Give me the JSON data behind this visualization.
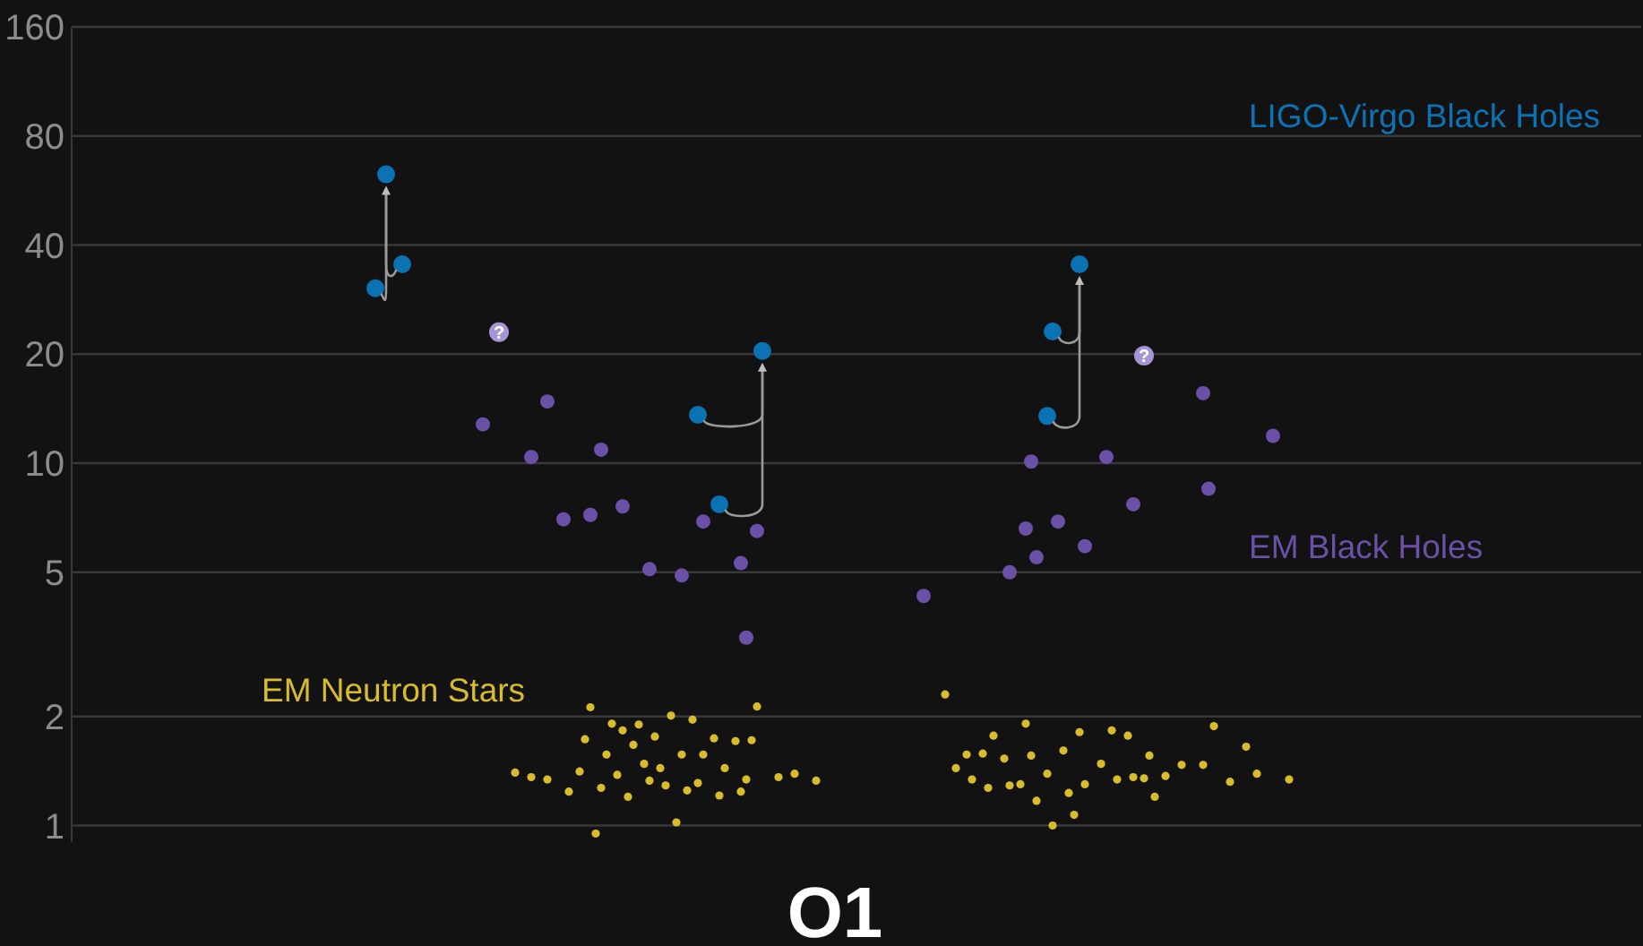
{
  "chart_data": {
    "type": "scatter",
    "title": "O1",
    "categories": [
      null,
      null,
      null,
      null,
      null,
      null,
      null,
      null,
      null,
      null,
      null,
      null,
      null,
      null,
      null,
      null,
      null,
      null,
      null,
      null,
      null,
      null,
      null,
      null,
      null,
      null,
      null,
      null,
      null,
      null,
      null,
      null,
      null,
      null,
      null,
      null,
      null,
      null,
      null,
      null,
      null,
      null,
      null,
      null,
      null,
      null,
      null,
      null,
      null,
      null,
      null,
      null,
      null,
      null,
      null,
      null,
      null,
      null,
      null,
      null,
      null,
      null,
      null,
      null,
      null,
      null,
      null,
      null,
      null,
      null,
      null,
      null,
      null,
      null,
      null,
      null,
      null,
      null,
      null,
      null,
      null,
      null,
      null,
      null,
      null,
      null,
      null,
      null,
      null,
      null,
      null,
      null,
      null,
      null,
      null,
      null,
      null,
      null,
      null,
      null,
      null,
      null,
      null,
      null,
      null,
      null,
      null,
      null,
      null,
      null,
      null,
      null,
      null,
      null,
      null,
      null,
      null,
      null,
      null,
      null,
      null,
      null,
      null,
      null,
      null,
      null,
      null,
      null,
      null,
      null,
      null,
      null,
      null,
      null,
      null,
      null,
      null,
      null,
      null,
      null,
      null,
      null,
      null,
      null,
      null,
      null,
      null,
      null,
      null,
      null,
      null,
      null,
      null,
      null,
      null,
      null,
      null,
      null,
      null,
      null,
      null,
      null,
      null,
      null,
      null,
      null,
      null,
      null,
      null,
      null,
      null,
      null,
      null,
      null,
      null,
      null,
      null,
      null,
      null,
      null,
      null,
      null,
      null,
      null,
      null,
      null,
      null,
      null,
      null,
      null,
      null,
      null,
      null,
      null,
      null,
      null,
      null,
      null,
      null,
      null,
      null,
      null,
      null,
      null,
      null,
      null,
      null,
      null,
      null,
      null,
      null,
      null,
      null,
      null,
      null,
      null,
      null,
      null,
      null,
      null,
      null,
      null,
      null,
      null,
      null,
      null,
      null,
      null,
      null,
      null,
      null,
      null,
      null,
      null,
      null,
      null,
      null,
      null,
      null,
      null,
      null,
      null,
      null,
      null,
      null,
      null,
      null,
      null,
      null,
      null,
      null,
      null,
      null,
      null,
      null,
      null,
      null,
      null,
      null,
      null,
      null,
      null,
      null,
      null,
      null,
      null,
      null,
      null,
      null,
      null,
      null,
      null,
      null,
      null,
      null,
      null,
      null,
      null,
      null,
      null,
      null,
      null,
      null,
      null,
      null,
      null,
      null,
      null,
      null,
      null,
      null,
      null
    ],
    "ylim": [
      0.9,
      160
    ],
    "yticks": [
      1,
      2,
      5,
      10,
      20,
      40,
      80,
      160
    ],
    "log": "y",
    "grid": "y",
    "tick_labels": "y",
    "marker": "circle",
    "series": [
      {
        "name": "LIGO-Virgo Black Holes",
        "color": "#0b72b4",
        "values": [
          null,
          null,
          null,
          null,
          null,
          null,
          null,
          null,
          null,
          null,
          null,
          null,
          null,
          null,
          null,
          null,
          null,
          null,
          null,
          null,
          null,
          null,
          null,
          null,
          null,
          null,
          null,
          null,
          null,
          null,
          null,
          null,
          null,
          null,
          null,
          null,
          null,
          null,
          null,
          null,
          null,
          null,
          null,
          null,
          null,
          null,
          null,
          null,
          null,
          null,
          null,
          null,
          null,
          null,
          null,
          null,
          30.4,
          null,
          62.7,
          null,
          null,
          35.4,
          null,
          null,
          null,
          null,
          null,
          null,
          null,
          null,
          null,
          null,
          null,
          null,
          null,
          null,
          null,
          null,
          null,
          null,
          null,
          null,
          null,
          null,
          null,
          null,
          null,
          null,
          null,
          null,
          null,
          null,
          null,
          null,
          null,
          null,
          null,
          null,
          null,
          null,
          null,
          null,
          null,
          null,
          null,
          null,
          null,
          null,
          null,
          null,
          null,
          null,
          null,
          null,
          null,
          null,
          13.6,
          null,
          null,
          null,
          7.7,
          null,
          null,
          null,
          null,
          null,
          null,
          null,
          20.4,
          null,
          null,
          null,
          null,
          null,
          null,
          null,
          null,
          null,
          null,
          null,
          null,
          null,
          null,
          null,
          null,
          null,
          null,
          null,
          null,
          null,
          null,
          null,
          null,
          null,
          null,
          null,
          null,
          null,
          null,
          null,
          null,
          null,
          null,
          null,
          null,
          null,
          null,
          null,
          null,
          null,
          null,
          null,
          null,
          null,
          null,
          null,
          null,
          null,
          null,
          null,
          null,
          13.5,
          23.1,
          null,
          null,
          null,
          null,
          35.4,
          null,
          null,
          null,
          null,
          null,
          null,
          null,
          null,
          null,
          null,
          null,
          null,
          null,
          null,
          null,
          null,
          null,
          null,
          null,
          null,
          null,
          null,
          null,
          null,
          null,
          null,
          null,
          null,
          null,
          null,
          null,
          null,
          null,
          null,
          null,
          null,
          null,
          null,
          null,
          null,
          null,
          null,
          null,
          null,
          null,
          null,
          null,
          null,
          null,
          null,
          null,
          null,
          null,
          null,
          null,
          null,
          null,
          null,
          null,
          null,
          null,
          null,
          null,
          null,
          null,
          null,
          null,
          null,
          null,
          null,
          null,
          null,
          null,
          null,
          null,
          null,
          null,
          null,
          null,
          null,
          null,
          null,
          null,
          null,
          null,
          null,
          null,
          null,
          null,
          null,
          null,
          null,
          null,
          null,
          null,
          null,
          null,
          null,
          null,
          null,
          null,
          null,
          null,
          null
        ]
      },
      {
        "name": "EM Black Holes",
        "color": "#6a50a6",
        "values": [
          null,
          null,
          null,
          null,
          null,
          null,
          null,
          null,
          null,
          null,
          null,
          null,
          null,
          null,
          null,
          null,
          null,
          null,
          null,
          null,
          null,
          null,
          null,
          null,
          null,
          null,
          null,
          null,
          null,
          null,
          null,
          null,
          null,
          null,
          null,
          null,
          null,
          null,
          null,
          null,
          null,
          null,
          null,
          null,
          null,
          null,
          null,
          null,
          null,
          null,
          null,
          null,
          null,
          null,
          null,
          null,
          null,
          null,
          null,
          null,
          null,
          null,
          null,
          null,
          null,
          null,
          null,
          null,
          null,
          null,
          null,
          null,
          null,
          null,
          null,
          null,
          12.8,
          null,
          null,
          null,
          null,
          null,
          null,
          null,
          null,
          10.4,
          null,
          null,
          14.8,
          null,
          null,
          7.0,
          null,
          null,
          null,
          null,
          7.2,
          null,
          10.9,
          null,
          null,
          null,
          7.6,
          null,
          null,
          null,
          null,
          5.1,
          null,
          null,
          null,
          null,
          null,
          4.9,
          null,
          null,
          null,
          6.9,
          null,
          null,
          null,
          null,
          null,
          null,
          5.3,
          3.3,
          null,
          6.5,
          null,
          null,
          null,
          null,
          null,
          null,
          null,
          null,
          null,
          null,
          null,
          null,
          null,
          null,
          null,
          null,
          null,
          null,
          null,
          null,
          null,
          null,
          null,
          null,
          null,
          null,
          null,
          null,
          null,
          null,
          4.3,
          null,
          null,
          null,
          null,
          null,
          null,
          null,
          null,
          null,
          null,
          null,
          null,
          null,
          null,
          null,
          5.0,
          null,
          null,
          6.6,
          10.1,
          5.5,
          null,
          null,
          null,
          6.9,
          null,
          null,
          null,
          null,
          5.9,
          null,
          null,
          null,
          10.4,
          null,
          null,
          null,
          null,
          7.7,
          null,
          null,
          null,
          null,
          null,
          null,
          null,
          null,
          null,
          null,
          null,
          null,
          15.6,
          8.5,
          null,
          null,
          null,
          null,
          null,
          null,
          null,
          null,
          null,
          null,
          null,
          11.9,
          null,
          null,
          null,
          null,
          null,
          null,
          null,
          null,
          null,
          null,
          null,
          null,
          null,
          null,
          null,
          null,
          null,
          null,
          null,
          null,
          null,
          null,
          null,
          null,
          null,
          null,
          null,
          null,
          null,
          null,
          null,
          null,
          null,
          null,
          null,
          null,
          null,
          null,
          null,
          null,
          null,
          null,
          null,
          null,
          null,
          null,
          null,
          null,
          null,
          null,
          null,
          null,
          null,
          null,
          null,
          null,
          null,
          null,
          null,
          null,
          null,
          null,
          null,
          null,
          null,
          null,
          null,
          null
        ]
      },
      {
        "name": "EM Neutron Stars",
        "color": "#d8bc2c",
        "values": [
          null,
          null,
          null,
          null,
          null,
          null,
          null,
          null,
          null,
          null,
          null,
          null,
          null,
          null,
          null,
          null,
          null,
          null,
          null,
          null,
          null,
          null,
          null,
          null,
          null,
          null,
          null,
          null,
          null,
          null,
          null,
          null,
          null,
          null,
          null,
          null,
          null,
          null,
          null,
          null,
          null,
          null,
          null,
          null,
          null,
          null,
          null,
          null,
          null,
          null,
          null,
          null,
          null,
          null,
          null,
          null,
          null,
          null,
          null,
          null,
          null,
          null,
          null,
          null,
          null,
          null,
          null,
          null,
          null,
          null,
          null,
          null,
          null,
          null,
          null,
          null,
          null,
          null,
          null,
          null,
          null,
          null,
          1.4,
          null,
          null,
          1.36,
          null,
          null,
          1.34,
          null,
          null,
          null,
          1.24,
          null,
          1.41,
          1.73,
          2.12,
          0.95,
          1.27,
          1.57,
          1.91,
          1.38,
          1.83,
          1.2,
          1.67,
          1.9,
          1.48,
          1.33,
          1.76,
          1.44,
          1.29,
          2.01,
          1.02,
          1.57,
          1.25,
          1.96,
          1.31,
          1.57,
          null,
          1.74,
          1.21,
          1.44,
          null,
          1.71,
          1.24,
          1.34,
          1.72,
          2.13,
          null,
          null,
          null,
          1.36,
          null,
          null,
          1.39,
          null,
          null,
          null,
          1.33,
          null,
          null,
          null,
          null,
          null,
          null,
          null,
          null,
          null,
          null,
          null,
          null,
          null,
          null,
          null,
          null,
          null,
          null,
          null,
          null,
          null,
          null,
          null,
          2.3,
          null,
          1.44,
          null,
          1.57,
          1.34,
          null,
          1.58,
          1.27,
          1.77,
          null,
          1.53,
          1.29,
          null,
          1.3,
          1.91,
          1.56,
          1.17,
          null,
          1.39,
          1.0,
          null,
          1.61,
          1.23,
          1.07,
          1.81,
          1.3,
          null,
          null,
          1.48,
          null,
          1.83,
          1.34,
          null,
          1.77,
          1.36,
          null,
          1.35,
          1.56,
          1.2,
          null,
          1.37,
          null,
          null,
          1.47,
          null,
          null,
          null,
          1.47,
          null,
          1.88,
          null,
          null,
          1.32,
          null,
          null,
          1.65,
          null,
          1.39,
          null,
          null,
          null,
          null,
          null,
          1.34,
          null,
          null,
          null,
          null,
          null,
          null,
          null,
          null,
          null,
          null,
          null,
          null,
          null,
          null,
          null,
          null,
          null,
          null,
          null,
          null,
          null,
          null,
          null,
          null,
          null,
          null,
          null,
          null,
          null,
          null,
          null,
          null,
          null,
          null,
          null,
          null,
          null,
          null,
          null,
          null,
          null,
          null,
          null,
          null,
          null,
          null,
          null,
          null,
          null,
          null,
          null,
          null,
          null,
          null,
          null,
          null,
          null,
          null,
          null,
          null,
          null,
          null,
          null,
          null,
          null
        ]
      },
      {
        "color": "#a794d6",
        "values": [
          null,
          null,
          null,
          null,
          null,
          null,
          null,
          null,
          null,
          null,
          null,
          null,
          null,
          null,
          null,
          null,
          null,
          null,
          null,
          null,
          null,
          null,
          null,
          null,
          null,
          null,
          null,
          null,
          null,
          null,
          null,
          null,
          null,
          null,
          null,
          null,
          null,
          null,
          null,
          null,
          null,
          null,
          null,
          null,
          null,
          null,
          null,
          null,
          null,
          null,
          null,
          null,
          null,
          null,
          null,
          null,
          null,
          null,
          null,
          null,
          null,
          null,
          null,
          null,
          null,
          null,
          null,
          null,
          null,
          null,
          null,
          null,
          null,
          null,
          null,
          null,
          null,
          null,
          null,
          23,
          null,
          null,
          null,
          null,
          null,
          null,
          null,
          null,
          null,
          null,
          null,
          null,
          null,
          null,
          null,
          null,
          null,
          null,
          null,
          null,
          null,
          null,
          null,
          null,
          null,
          null,
          null,
          null,
          null,
          null,
          null,
          null,
          null,
          null,
          null,
          null,
          null,
          null,
          null,
          null,
          null,
          null,
          null,
          null,
          null,
          null,
          null,
          null,
          null,
          null,
          null,
          null,
          null,
          null,
          null,
          null,
          null,
          null,
          null,
          null,
          null,
          null,
          null,
          null,
          null,
          null,
          null,
          null,
          null,
          null,
          null,
          null,
          null,
          null,
          null,
          null,
          null,
          null,
          null,
          null,
          null,
          null,
          null,
          null,
          null,
          null,
          null,
          null,
          null,
          null,
          null,
          null,
          null,
          null,
          null,
          null,
          null,
          null,
          null,
          null,
          null,
          null,
          null,
          null,
          null,
          null,
          null,
          null,
          null,
          null,
          null,
          null,
          null,
          null,
          null,
          null,
          null,
          null,
          null,
          19.8,
          null,
          null,
          null,
          null,
          null,
          null,
          null,
          null,
          null,
          null,
          null,
          null,
          null,
          null,
          null,
          null,
          null,
          null,
          null,
          null,
          null,
          null,
          null,
          null,
          null,
          null,
          null,
          null,
          null,
          null,
          null,
          null,
          null,
          null,
          null,
          null,
          null,
          null,
          null,
          null,
          null,
          null,
          null,
          null,
          null,
          null,
          null,
          null,
          null,
          null,
          null,
          null,
          null,
          null,
          null,
          null,
          null,
          null,
          null,
          null,
          null,
          null,
          null,
          null,
          null,
          null,
          null,
          null,
          null,
          null,
          null,
          null,
          null,
          null,
          null,
          null,
          null,
          null,
          null,
          null,
          null,
          null,
          null,
          null,
          null,
          null,
          null,
          null,
          null,
          null,
          null,
          null
        ],
        "value_labels": [
          null,
          null,
          null,
          null,
          null,
          null,
          null,
          null,
          null,
          null,
          null,
          null,
          null,
          null,
          null,
          null,
          null,
          null,
          null,
          null,
          null,
          null,
          null,
          null,
          null,
          null,
          null,
          null,
          null,
          null,
          null,
          null,
          null,
          null,
          null,
          null,
          null,
          null,
          null,
          null,
          null,
          null,
          null,
          null,
          null,
          null,
          null,
          null,
          null,
          null,
          null,
          null,
          null,
          null,
          null,
          null,
          null,
          null,
          null,
          null,
          null,
          null,
          null,
          null,
          null,
          null,
          null,
          null,
          null,
          null,
          null,
          null,
          null,
          null,
          null,
          null,
          null,
          null,
          null,
          "?",
          null,
          null,
          null,
          null,
          null,
          null,
          null,
          null,
          null,
          null,
          null,
          null,
          null,
          null,
          null,
          null,
          null,
          null,
          null,
          null,
          null,
          null,
          null,
          null,
          null,
          null,
          null,
          null,
          null,
          null,
          null,
          null,
          null,
          null,
          null,
          null,
          null,
          null,
          null,
          null,
          null,
          null,
          null,
          null,
          null,
          null,
          null,
          null,
          null,
          null,
          null,
          null,
          null,
          null,
          null,
          null,
          null,
          null,
          null,
          null,
          null,
          null,
          null,
          null,
          null,
          null,
          null,
          null,
          null,
          null,
          null,
          null,
          null,
          null,
          null,
          null,
          null,
          null,
          null,
          null,
          null,
          null,
          null,
          null,
          null,
          null,
          null,
          null,
          null,
          null,
          null,
          null,
          null,
          null,
          null,
          null,
          null,
          null,
          null,
          null,
          null,
          null,
          null,
          null,
          null,
          null,
          null,
          null,
          null,
          null,
          null,
          null,
          null,
          null,
          null,
          null,
          null,
          null,
          null,
          "?",
          null,
          null,
          null,
          null,
          null,
          null,
          null,
          null,
          null,
          null,
          null,
          null,
          null,
          null,
          null,
          null,
          null,
          null,
          null,
          null,
          null,
          null,
          null,
          null,
          null,
          null,
          null,
          null,
          null,
          null,
          null,
          null,
          null,
          null,
          null,
          null,
          null,
          null,
          null,
          null,
          null,
          null,
          null,
          null,
          null,
          null,
          null,
          null,
          null,
          null,
          null,
          null,
          null,
          null,
          null,
          null,
          null,
          null,
          null,
          null,
          null,
          null,
          null,
          null,
          null,
          null,
          null,
          null,
          null,
          null,
          null,
          null,
          null,
          null,
          null,
          null,
          null,
          null,
          null,
          null,
          null,
          null,
          null,
          null,
          null,
          null,
          null,
          null,
          null,
          null,
          null,
          null
        ]
      }
    ]
  }
}
